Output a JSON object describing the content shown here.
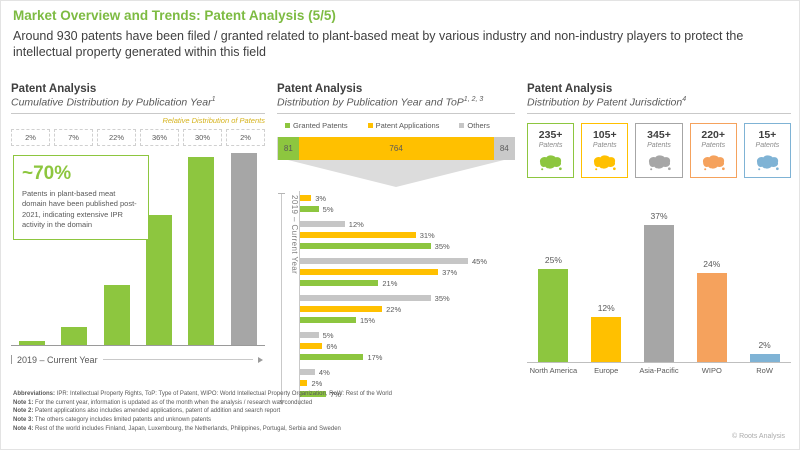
{
  "header": {
    "title": "Market Overview and Trends: Patent Analysis (5/5)",
    "subtitle": "Around 930 patents have been filed / granted related to plant-based meat by various industry and non-industry players to protect the intellectual property generated within this field"
  },
  "colors": {
    "green": "#8dc63f",
    "yellow": "#ffc000",
    "gray": "#c6c6c6",
    "dark_gray": "#a6a6a6",
    "orange": "#f5a25d",
    "blue": "#7fb3d5",
    "accent_title": "#7dbb42",
    "relative_label_yellow": "#d6b31c"
  },
  "panels": {
    "left": {
      "title": "Patent Analysis",
      "subtitle": "Cumulative Distribution by Publication Year",
      "subtitle_sup": "1",
      "relative_label": "Relative Distribution of Patents",
      "relative_boxes": [
        "2%",
        "7%",
        "22%",
        "36%",
        "30%",
        "2%"
      ],
      "callout_headline": "~70%",
      "callout_text": "Patents in plant-based meat domain have been published post-2021, indicating extensive IPR activity in the domain",
      "x_axis_label": "2019 – Current Year"
    },
    "middle": {
      "title": "Patent Analysis",
      "subtitle": "Distribution by Publication Year and ToP",
      "subtitle_sup": "1, 2, 3",
      "legend": [
        {
          "label": "Granted Patents",
          "color": "#8dc63f"
        },
        {
          "label": "Patent Applications",
          "color": "#ffc000"
        },
        {
          "label": "Others",
          "color": "#c6c6c6"
        }
      ],
      "y_axis_label": "2019 – Current Year"
    },
    "right": {
      "title": "Patent Analysis",
      "subtitle": "Distribution by Patent Jurisdiction",
      "subtitle_sup": "4",
      "cards": [
        {
          "count": "235+",
          "label": "Patents",
          "color": "#8dc63f",
          "icon": "north-america-map-icon"
        },
        {
          "count": "105+",
          "label": "Patents",
          "color": "#ffc000",
          "icon": "europe-map-icon"
        },
        {
          "count": "345+",
          "label": "Patents",
          "color": "#a6a6a6",
          "icon": "asia-pacific-map-icon"
        },
        {
          "count": "220+",
          "label": "Patents",
          "color": "#f5a25d",
          "icon": "wipo-map-icon"
        },
        {
          "count": "15+",
          "label": "Patents",
          "color": "#7fb3d5",
          "icon": "row-map-icon"
        }
      ]
    }
  },
  "chart_data": [
    {
      "id": "cumulative-distribution-by-publication-year",
      "type": "bar",
      "title": "Cumulative Distribution by Publication Year",
      "xlabel": "2019 – Current Year",
      "ylim": [
        0,
        100
      ],
      "grid": false,
      "values_pct_cumulative": [
        2,
        9,
        31,
        67,
        97,
        99
      ],
      "bar_colors": [
        "#8dc63f",
        "#8dc63f",
        "#8dc63f",
        "#8dc63f",
        "#8dc63f",
        "#a6a6a6"
      ],
      "relative_distribution_pct": [
        2,
        7,
        22,
        36,
        30,
        2
      ],
      "annotation": "~70% Patents in plant-based meat domain have been published post-2021, indicating extensive IPR activity in the domain"
    },
    {
      "id": "type-of-patent-stacked-bar",
      "type": "bar",
      "orientation": "horizontal",
      "stacked": true,
      "series": [
        {
          "name": "Granted Patents",
          "value": 81,
          "color": "#8dc63f"
        },
        {
          "name": "Patent Applications",
          "value": 764,
          "color": "#ffc000"
        },
        {
          "name": "Others",
          "value": 84,
          "color": "#c9c9c9"
        }
      ],
      "legend_position": "top"
    },
    {
      "id": "distribution-by-year-and-type-grouped",
      "type": "bar",
      "orientation": "horizontal",
      "ylabel": "2019 – Current Year",
      "xlim": [
        0,
        50
      ],
      "grid": false,
      "groups": [
        {
          "bars": [
            {
              "series": "Patent Applications",
              "pct": 3
            },
            {
              "series": "Granted Patents",
              "pct": 5
            }
          ]
        },
        {
          "bars": [
            {
              "series": "Others",
              "pct": 12
            },
            {
              "series": "Patent Applications",
              "pct": 31
            },
            {
              "series": "Granted Patents",
              "pct": 35
            }
          ]
        },
        {
          "bars": [
            {
              "series": "Others",
              "pct": 45
            },
            {
              "series": "Patent Applications",
              "pct": 37
            },
            {
              "series": "Granted Patents",
              "pct": 21
            }
          ]
        },
        {
          "bars": [
            {
              "series": "Others",
              "pct": 35
            },
            {
              "series": "Patent Applications",
              "pct": 22
            },
            {
              "series": "Granted Patents",
              "pct": 15
            }
          ]
        },
        {
          "bars": [
            {
              "series": "Others",
              "pct": 5
            },
            {
              "series": "Patent Applications",
              "pct": 6
            },
            {
              "series": "Granted Patents",
              "pct": 17
            }
          ]
        },
        {
          "bars": [
            {
              "series": "Others",
              "pct": 4
            },
            {
              "series": "Patent Applications",
              "pct": 2
            },
            {
              "series": "Granted Patents",
              "pct": 7
            }
          ]
        }
      ],
      "series_colors": {
        "Granted Patents": "#8dc63f",
        "Patent Applications": "#ffc000",
        "Others": "#c6c6c6"
      }
    },
    {
      "id": "distribution-by-patent-jurisdiction",
      "type": "bar",
      "title": "Distribution by Patent Jurisdiction",
      "categories": [
        "North America",
        "Europe",
        "Asia-Pacific",
        "WIPO",
        "RoW"
      ],
      "values": [
        25,
        12,
        37,
        24,
        2
      ],
      "unit": "%",
      "ylim": [
        0,
        40
      ],
      "grid": false,
      "bar_colors": [
        "#8dc63f",
        "#ffc000",
        "#a6a6a6",
        "#f5a25d",
        "#7fb3d5"
      ]
    }
  ],
  "footer": {
    "notes": [
      {
        "prefix": "Abbreviations:",
        "text": " IPR: Intellectual Property Rights, ToP: Type of Patent, WIPO: World Intellectual Property Organization, RoW: Rest of the World"
      },
      {
        "prefix": "Note 1:",
        "text": " For the current year, information is updated as of the month when the analysis / research was conducted"
      },
      {
        "prefix": "Note 2:",
        "text": " Patent applications also includes amended applications, patent of addition and search report"
      },
      {
        "prefix": "Note 3:",
        "text": " The others category includes limited patents and unknown patents"
      },
      {
        "prefix": "Note 4:",
        "text": " Rest of the world includes Finland, Japan, Luxembourg, the Netherlands, Philippines, Portugal, Serbia and Sweden"
      }
    ],
    "copyright": "© Roots Analysis"
  }
}
